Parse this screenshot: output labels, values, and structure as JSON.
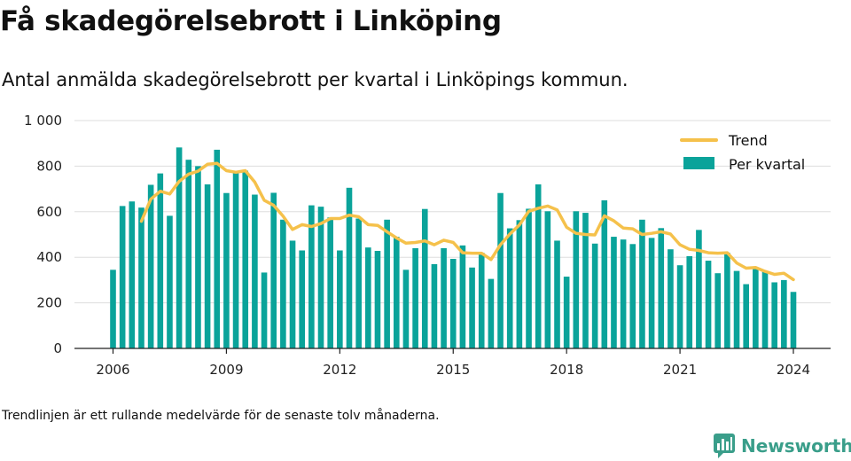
{
  "header": {
    "title": "Få skadegörelsebrott i Linköping",
    "subtitle": "Antal anmälda skadegörelsebrott per kvartal i Linköpings kommun."
  },
  "footer": {
    "note": "Trendlinjen är ett rullande medelvärde för de senaste tolv månaderna.",
    "brand": "Newsworthy",
    "brand_color": "#3a9e8a"
  },
  "colors": {
    "bars": "#0aa39a",
    "trend": "#f5c14b",
    "grid": "#dddddd"
  },
  "chart_data": {
    "type": "bar",
    "title": "Få skadegörelsebrott i Linköping",
    "ylim": [
      0,
      1000
    ],
    "y_ticks": [
      0,
      200,
      400,
      600,
      800,
      1000
    ],
    "y_tick_labels": [
      "0",
      "200",
      "400",
      "600",
      "800",
      "1 000"
    ],
    "x_ticks": [
      2006,
      2009,
      2012,
      2015,
      2018,
      2021,
      2024
    ],
    "grid": true,
    "legend_position": "top-right",
    "start": "2006-Q1",
    "series": [
      {
        "name": "Per kvartal",
        "type": "bar",
        "values": [
          345,
          625,
          645,
          618,
          718,
          768,
          582,
          882,
          828,
          800,
          720,
          872,
          682,
          780,
          780,
          675,
          333,
          683,
          565,
          473,
          430,
          628,
          622,
          575,
          430,
          705,
          570,
          443,
          428,
          565,
          490,
          345,
          440,
          612,
          370,
          440,
          393,
          452,
          355,
          420,
          305,
          682,
          527,
          563,
          613,
          720,
          602,
          473,
          315,
          602,
          595,
          460,
          650,
          490,
          478,
          458,
          565,
          485,
          528,
          435,
          365,
          405,
          520,
          385,
          330,
          420,
          340,
          282,
          350,
          340,
          290,
          300,
          248
        ]
      },
      {
        "name": "Trend",
        "type": "line",
        "values": [
          null,
          null,
          null,
          558,
          655,
          690,
          678,
          733,
          765,
          778,
          808,
          812,
          780,
          773,
          780,
          730,
          650,
          628,
          580,
          522,
          543,
          535,
          548,
          570,
          570,
          585,
          578,
          543,
          540,
          512,
          485,
          462,
          465,
          472,
          455,
          475,
          465,
          420,
          418,
          418,
          390,
          455,
          502,
          542,
          602,
          615,
          625,
          608,
          532,
          505,
          500,
          498,
          582,
          560,
          528,
          525,
          500,
          505,
          512,
          502,
          455,
          435,
          430,
          420,
          418,
          420,
          375,
          352,
          355,
          338,
          325,
          330,
          302
        ]
      }
    ]
  }
}
